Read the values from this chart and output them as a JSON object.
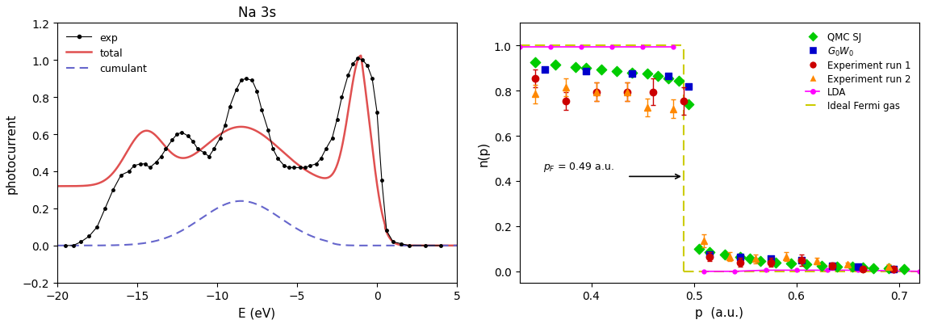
{
  "panel1": {
    "title": "Na 3s",
    "xlabel": "E (eV)",
    "ylabel": "photocurrent",
    "xlim": [
      -20,
      5
    ],
    "ylim": [
      -0.2,
      1.2
    ],
    "exp_color": "black",
    "total_color": "#e05050",
    "cumulant_color": "#6666cc"
  },
  "panel2": {
    "xlabel": "p  (a.u.)",
    "ylabel": "n(p)",
    "xlim": [
      0.33,
      0.72
    ],
    "ylim": [
      -0.05,
      1.1
    ],
    "pF": 0.49,
    "qmc_color": "#00cc00",
    "g0w0_color": "#0000cc",
    "exp1_color": "#cc0000",
    "exp2_color": "#ff8800",
    "lda_color": "#ff00ff",
    "ideal_color": "#cccc00",
    "qmc_before": {
      "x": [
        0.345,
        0.365,
        0.385,
        0.395,
        0.41,
        0.425,
        0.44,
        0.455,
        0.465,
        0.475,
        0.485,
        0.495
      ],
      "y": [
        0.925,
        0.915,
        0.905,
        0.9,
        0.895,
        0.885,
        0.88,
        0.875,
        0.865,
        0.855,
        0.845,
        0.74
      ]
    },
    "qmc_after": {
      "x": [
        0.505,
        0.515,
        0.53,
        0.545,
        0.555,
        0.565,
        0.58,
        0.595,
        0.61,
        0.625,
        0.64,
        0.655,
        0.665,
        0.675,
        0.69,
        0.705
      ],
      "y": [
        0.1,
        0.085,
        0.075,
        0.065,
        0.055,
        0.045,
        0.04,
        0.035,
        0.03,
        0.025,
        0.022,
        0.02,
        0.018,
        0.015,
        0.012,
        0.01
      ]
    },
    "g0w0_before": {
      "x": [
        0.355,
        0.395,
        0.44,
        0.475,
        0.495
      ],
      "y": [
        0.895,
        0.885,
        0.875,
        0.865,
        0.82
      ]
    },
    "g0w0_after": {
      "x": [
        0.515,
        0.545,
        0.575,
        0.605,
        0.635,
        0.66,
        0.695
      ],
      "y": [
        0.075,
        0.065,
        0.055,
        0.05,
        0.025,
        0.02,
        0.01
      ]
    },
    "exp1_before": {
      "x": [
        0.345,
        0.375,
        0.405,
        0.435,
        0.46,
        0.49
      ],
      "y": [
        0.855,
        0.755,
        0.795,
        0.795,
        0.795,
        0.755
      ],
      "yerr": [
        0.04,
        0.04,
        0.04,
        0.04,
        0.06,
        0.06
      ]
    },
    "exp1_after": {
      "x": [
        0.515,
        0.545,
        0.575,
        0.605,
        0.635,
        0.665,
        0.695
      ],
      "y": [
        0.065,
        0.04,
        0.04,
        0.05,
        0.025,
        0.01,
        0.01
      ],
      "yerr": [
        0.02,
        0.02,
        0.02,
        0.025,
        0.015,
        0.01,
        0.01
      ]
    },
    "exp2_before": {
      "x": [
        0.345,
        0.375,
        0.405,
        0.435,
        0.455,
        0.48
      ],
      "y": [
        0.785,
        0.815,
        0.795,
        0.795,
        0.725,
        0.72
      ],
      "yerr": [
        0.04,
        0.04,
        0.04,
        0.04,
        0.04,
        0.04
      ]
    },
    "exp2_after": {
      "x": [
        0.51,
        0.535,
        0.56,
        0.59,
        0.62,
        0.65,
        0.69
      ],
      "y": [
        0.135,
        0.065,
        0.055,
        0.065,
        0.045,
        0.03,
        0.02
      ],
      "yerr": [
        0.03,
        0.02,
        0.02,
        0.02,
        0.015,
        0.01,
        0.01
      ]
    },
    "lda_before": {
      "x": [
        0.33,
        0.36,
        0.39,
        0.42,
        0.45,
        0.48
      ],
      "y": [
        0.995,
        0.995,
        0.995,
        0.995,
        0.995,
        0.995
      ]
    },
    "lda_after": {
      "x": [
        0.51,
        0.54,
        0.57,
        0.6,
        0.63,
        0.66,
        0.695,
        0.72
      ],
      "y": [
        0.0,
        0.0,
        0.005,
        0.005,
        0.005,
        0.005,
        0.002,
        0.0
      ]
    }
  }
}
